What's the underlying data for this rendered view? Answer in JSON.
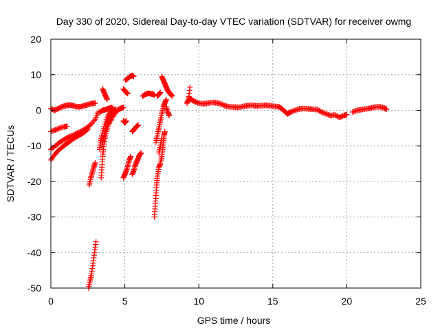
{
  "chart_data": {
    "type": "scatter",
    "title": "Day 330 of 2020, Sidereal Day-to-day VTEC variation (SDTVAR) for receiver owmg",
    "xlabel": "GPS time / hours",
    "ylabel": "SDTVAR / TECUs",
    "xlim": [
      0,
      25
    ],
    "ylim": [
      -50,
      20
    ],
    "xticks": [
      0,
      5,
      10,
      15,
      20,
      25
    ],
    "xtick_labels": [
      "0",
      "5",
      "10",
      "15",
      "20",
      "25"
    ],
    "yticks": [
      -50,
      -40,
      -30,
      -20,
      -10,
      0,
      10,
      20
    ],
    "ytick_labels": [
      "-50",
      "-40",
      "-30",
      "-20",
      "-10",
      "0",
      "10",
      "20"
    ],
    "grid": true,
    "marker": "+",
    "color": "#ff0000",
    "series": [
      {
        "name": "main",
        "points": [
          [
            0,
            0.5
          ],
          [
            0.25,
            0
          ],
          [
            0.5,
            0.5
          ],
          [
            0.75,
            1
          ],
          [
            1,
            1.3
          ],
          [
            1.25,
            1.5
          ],
          [
            1.5,
            1.3
          ],
          [
            1.75,
            1
          ],
          [
            2,
            1
          ],
          [
            2.25,
            1.3
          ],
          [
            2.5,
            1.6
          ],
          [
            2.75,
            1.9
          ],
          [
            3,
            2
          ],
          [
            9.3,
            3.5
          ],
          [
            9.5,
            3
          ],
          [
            9.7,
            2.5
          ],
          [
            10,
            2
          ],
          [
            10.3,
            1.8
          ],
          [
            10.6,
            2
          ],
          [
            10.9,
            2.2
          ],
          [
            11.2,
            2.1
          ],
          [
            11.5,
            1.8
          ],
          [
            11.8,
            1.2
          ],
          [
            12.1,
            1
          ],
          [
            12.4,
            0.9
          ],
          [
            12.7,
            0.8
          ],
          [
            13,
            1.1
          ],
          [
            13.3,
            1.3
          ],
          [
            13.6,
            1.4
          ],
          [
            13.9,
            1.2
          ],
          [
            14.2,
            1.3
          ],
          [
            14.5,
            1.4
          ],
          [
            14.8,
            1.3
          ],
          [
            15.1,
            1.1
          ],
          [
            15.4,
            1
          ],
          [
            15.6,
            0.5
          ],
          [
            15.8,
            -0.3
          ],
          [
            16,
            -1
          ],
          [
            16.2,
            -0.5
          ],
          [
            16.5,
            0
          ],
          [
            16.8,
            0.4
          ],
          [
            17.1,
            0.5
          ],
          [
            17.4,
            0.4
          ],
          [
            17.7,
            0.3
          ],
          [
            18,
            0.2
          ],
          [
            18.3,
            -0.5
          ],
          [
            18.6,
            -1
          ],
          [
            18.9,
            -1.5
          ],
          [
            19.2,
            -1.3
          ],
          [
            19.5,
            -2
          ],
          [
            19.8,
            -1.5
          ],
          [
            20,
            -1.2
          ],
          [
            20.4,
            -0.5
          ],
          [
            20.7,
            0
          ],
          [
            21,
            0.2
          ],
          [
            21.3,
            0.4
          ],
          [
            21.6,
            0.6
          ],
          [
            21.9,
            0.9
          ],
          [
            22.2,
            1
          ],
          [
            22.5,
            0.7
          ],
          [
            22.7,
            0.3
          ]
        ]
      },
      {
        "name": "arc-a",
        "points": [
          [
            0,
            -6
          ],
          [
            0.3,
            -5.5
          ],
          [
            0.6,
            -5
          ],
          [
            0.9,
            -4.6
          ],
          [
            1.1,
            -4.5
          ],
          [
            0,
            -11
          ],
          [
            0.3,
            -10
          ],
          [
            0.6,
            -9
          ],
          [
            0.9,
            -8.2
          ],
          [
            1.2,
            -7.5
          ],
          [
            1.5,
            -7
          ],
          [
            1.8,
            -6.4
          ],
          [
            2.1,
            -5.8
          ],
          [
            2.4,
            -5
          ],
          [
            2.7,
            -4
          ],
          [
            3,
            -2.5
          ],
          [
            3.2,
            -0.5
          ],
          [
            0,
            -14
          ],
          [
            0.25,
            -12.5
          ],
          [
            0.5,
            -11.3
          ],
          [
            0.75,
            -10.4
          ],
          [
            1,
            -9.6
          ],
          [
            1.25,
            -8.8
          ],
          [
            1.5,
            -8
          ],
          [
            1.75,
            -7.4
          ],
          [
            2,
            -6.8
          ],
          [
            2.25,
            -6.2
          ],
          [
            2.5,
            -5.3
          ]
        ]
      },
      {
        "name": "arc-b",
        "points": [
          [
            2.6,
            -21
          ],
          [
            2.7,
            -19
          ],
          [
            2.8,
            -17.5
          ],
          [
            2.9,
            -16
          ],
          [
            3,
            -14.8
          ],
          [
            2.55,
            -50
          ],
          [
            2.65,
            -48
          ],
          [
            2.75,
            -46
          ],
          [
            2.85,
            -43
          ],
          [
            2.95,
            -40
          ],
          [
            3.05,
            -37
          ],
          [
            3.4,
            -19
          ],
          [
            3.45,
            -16
          ],
          [
            3.5,
            -13
          ],
          [
            3.55,
            -11
          ],
          [
            3.65,
            -8
          ],
          [
            3.75,
            -6
          ],
          [
            3.9,
            -4
          ],
          [
            4.1,
            -2.5
          ],
          [
            4.3,
            -1
          ],
          [
            4.5,
            0
          ],
          [
            4.7,
            0.5
          ],
          [
            4.9,
            0.8
          ],
          [
            3.45,
            -10
          ],
          [
            3.55,
            -8
          ],
          [
            3.7,
            -5
          ],
          [
            3.85,
            -3
          ],
          [
            4.0,
            -1.5
          ],
          [
            4.2,
            -0.5
          ],
          [
            4.4,
            0.3
          ],
          [
            3.3,
            -11
          ],
          [
            3.35,
            -9
          ],
          [
            3.45,
            -7
          ],
          [
            3.6,
            -4.5
          ],
          [
            3.8,
            -2
          ],
          [
            4.0,
            -0.5
          ],
          [
            4.2,
            0.8
          ],
          [
            3.3,
            -0.5
          ],
          [
            3.5,
            0
          ],
          [
            3.7,
            0.2
          ],
          [
            3.9,
            0.5
          ],
          [
            4.1,
            0.8
          ],
          [
            3.5,
            6
          ],
          [
            3.6,
            5
          ],
          [
            3.7,
            4
          ],
          [
            3.8,
            3
          ]
        ]
      },
      {
        "name": "arc-c",
        "points": [
          [
            4.9,
            -19
          ],
          [
            5,
            -18
          ],
          [
            5.1,
            -17
          ],
          [
            5.2,
            -15.5
          ],
          [
            5.3,
            -14
          ],
          [
            5.4,
            -13
          ],
          [
            5.5,
            -18
          ],
          [
            5.6,
            -17
          ],
          [
            5.7,
            -15.5
          ],
          [
            5.8,
            -14.5
          ],
          [
            5.9,
            -13.5
          ],
          [
            6,
            -12.5
          ],
          [
            6.1,
            -12
          ],
          [
            5.5,
            -6
          ],
          [
            5.6,
            -5.5
          ],
          [
            5.7,
            -5
          ],
          [
            5.8,
            -4.5
          ],
          [
            5.9,
            -4.2
          ],
          [
            4.9,
            -3
          ],
          [
            5,
            -3.5
          ],
          [
            5.1,
            -3
          ],
          [
            4.9,
            6
          ],
          [
            5,
            5.5
          ],
          [
            5.1,
            5
          ],
          [
            5.2,
            4.7
          ],
          [
            5.05,
            8.5
          ],
          [
            5.2,
            9
          ],
          [
            5.35,
            9.5
          ],
          [
            5.5,
            9.8
          ],
          [
            5.6,
            9.5
          ],
          [
            6.2,
            4
          ],
          [
            6.4,
            4.5
          ],
          [
            6.6,
            4.8
          ],
          [
            6.8,
            4.6
          ],
          [
            7,
            4.4
          ]
        ]
      },
      {
        "name": "arc-d",
        "points": [
          [
            7.0,
            -30
          ],
          [
            7.05,
            -27
          ],
          [
            7.1,
            -24
          ],
          [
            7.15,
            -21
          ],
          [
            7.2,
            -18.5
          ],
          [
            7.3,
            -16
          ],
          [
            7.4,
            -15
          ],
          [
            7.5,
            -13
          ],
          [
            7.55,
            -11
          ],
          [
            7.6,
            -9
          ],
          [
            7.65,
            -7
          ],
          [
            7.7,
            -6
          ],
          [
            7.1,
            -9
          ],
          [
            7.2,
            -7
          ],
          [
            7.3,
            -5
          ],
          [
            7.4,
            -3
          ],
          [
            7.5,
            -1
          ],
          [
            7.6,
            1
          ],
          [
            7.7,
            2
          ],
          [
            7.8,
            3
          ],
          [
            7.3,
            -12
          ],
          [
            7.4,
            -10
          ],
          [
            7.5,
            -8
          ],
          [
            7.8,
            1
          ],
          [
            7.9,
            -0.5
          ],
          [
            8.0,
            -1.5
          ],
          [
            7.5,
            9.5
          ],
          [
            7.6,
            8.5
          ],
          [
            7.7,
            7.5
          ],
          [
            7.8,
            6.5
          ],
          [
            7.9,
            5.5
          ],
          [
            8.0,
            5
          ],
          [
            8.1,
            4.5
          ],
          [
            8.2,
            4
          ],
          [
            7.2,
            4
          ],
          [
            7.3,
            4.5
          ],
          [
            7.4,
            5
          ],
          [
            9.4,
            6.5
          ],
          [
            9.3,
            3
          ],
          [
            9.2,
            2
          ]
        ]
      }
    ]
  }
}
